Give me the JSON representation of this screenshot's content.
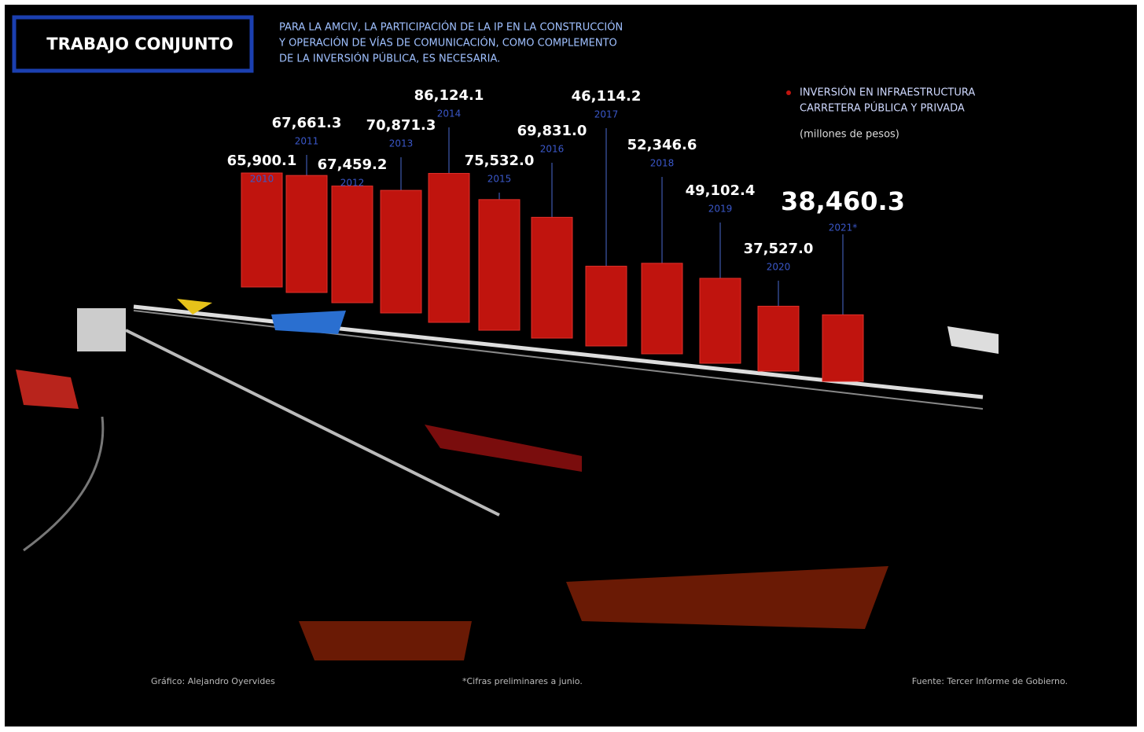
{
  "chart_data": {
    "type": "bar",
    "title": "TRABAJO CONJUNTO",
    "subtitle": [
      "PARA LA AMCIV, LA PARTICIPACIÓN DE LA IP EN LA CONSTRUCCIÓN",
      "Y OPERACIÓN DE VÍAS DE COMUNICACIÓN, COMO COMPLEMENTO",
      "DE LA INVERSIÓN PÚBLICA, ES NECESARIA."
    ],
    "series": [
      {
        "name": [
          "INVERSIÓN EN INFRAESTRUCTURA",
          "CARRETERA PÚBLICA Y PRIVADA"
        ],
        "color": "#c0140e",
        "values": [
          65900.1,
          67661.3,
          67459.2,
          70871.3,
          86124.1,
          75532.0,
          69831.0,
          46114.2,
          52346.6,
          49102.4,
          37527.0,
          38460.3
        ],
        "value_labels": [
          "65,900.1",
          "67,661.3",
          "67,459.2",
          "70,871.3",
          "86,124.1",
          "75,532.0",
          "69,831.0",
          "46,114.2",
          "52,346.6",
          "49,102.4",
          "37,527.0",
          "38,460.3"
        ]
      }
    ],
    "categories": [
      "2010",
      "2011",
      "2012",
      "2013",
      "2014",
      "2015",
      "2016",
      "2017",
      "2018",
      "2019",
      "2020",
      "2021*"
    ],
    "units": "(millones de pesos)",
    "credit": "Gráfico: Alejandro Oyervides",
    "note": "*Cifras preliminares a junio.",
    "source": "Fuente: Tercer Informe de Gobierno."
  }
}
